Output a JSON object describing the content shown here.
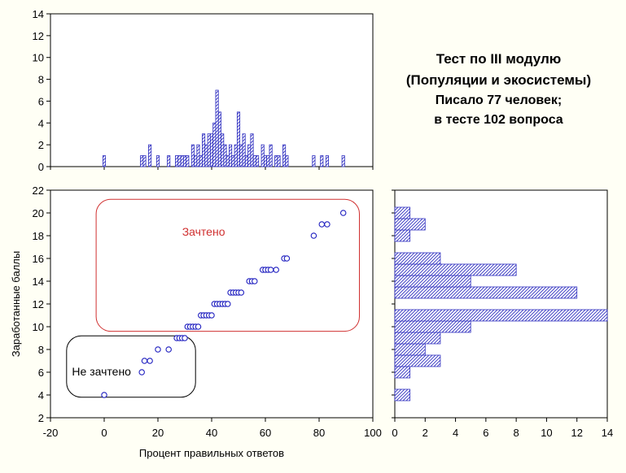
{
  "colors": {
    "bar": "#3030c0",
    "marker": "#2020c0",
    "pass_box": "#d03030",
    "fail_box": "#000000",
    "background": "#fffff5"
  },
  "info": {
    "line1": "Тест по III модулю",
    "line2": "(Популяции и экосистемы)",
    "line3": "Писало 77 человек;",
    "line4": "в тесте 102 вопроса"
  },
  "chart_data": [
    {
      "id": "scatter",
      "type": "scatter",
      "xlabel": "Процент правильных ответов",
      "ylabel": "Заработанные баллы",
      "xlim": [
        -20,
        100
      ],
      "ylim": [
        2,
        22
      ],
      "xticks": [
        -20,
        0,
        20,
        40,
        60,
        80,
        100
      ],
      "yticks": [
        2,
        4,
        6,
        8,
        10,
        12,
        14,
        16,
        18,
        20,
        22
      ],
      "points": [
        [
          0,
          4
        ],
        [
          14,
          6
        ],
        [
          15,
          7
        ],
        [
          17,
          7
        ],
        [
          20,
          8
        ],
        [
          24,
          8
        ],
        [
          27,
          9
        ],
        [
          28,
          9
        ],
        [
          29,
          9
        ],
        [
          30,
          9
        ],
        [
          31,
          10
        ],
        [
          32,
          10
        ],
        [
          33,
          10
        ],
        [
          34,
          10
        ],
        [
          35,
          10
        ],
        [
          36,
          11
        ],
        [
          37,
          11
        ],
        [
          38,
          11
        ],
        [
          39,
          11
        ],
        [
          40,
          11
        ],
        [
          41,
          12
        ],
        [
          42,
          12
        ],
        [
          43,
          12
        ],
        [
          44,
          12
        ],
        [
          45,
          12
        ],
        [
          46,
          12
        ],
        [
          47,
          13
        ],
        [
          48,
          13
        ],
        [
          49,
          13
        ],
        [
          50,
          13
        ],
        [
          51,
          13
        ],
        [
          54,
          14
        ],
        [
          55,
          14
        ],
        [
          56,
          14
        ],
        [
          59,
          15
        ],
        [
          60,
          15
        ],
        [
          61,
          15
        ],
        [
          62,
          15
        ],
        [
          64,
          15
        ],
        [
          67,
          16
        ],
        [
          68,
          16
        ],
        [
          78,
          18
        ],
        [
          81,
          19
        ],
        [
          83,
          19
        ],
        [
          89,
          20
        ]
      ],
      "annotations": [
        {
          "label": "Зачтено",
          "color": "#d03030",
          "x": [
            -3,
            95
          ],
          "y": [
            9.6,
            21.2
          ],
          "text_at": [
            37,
            18
          ]
        },
        {
          "label": "Не зачтено",
          "color": "#000000",
          "x": [
            -14,
            34
          ],
          "y": [
            3.8,
            9.2
          ],
          "text_at": [
            -1,
            5.7
          ]
        }
      ]
    },
    {
      "id": "hist_top",
      "type": "bar",
      "orientation": "vertical",
      "bin_width": 1,
      "xlim": [
        -20,
        100
      ],
      "ylim": [
        0,
        14
      ],
      "yticks": [
        0,
        2,
        4,
        6,
        8,
        10,
        12,
        14
      ],
      "bins": [
        [
          0,
          1
        ],
        [
          14,
          1
        ],
        [
          15,
          1
        ],
        [
          17,
          2
        ],
        [
          20,
          1
        ],
        [
          24,
          1
        ],
        [
          27,
          1
        ],
        [
          28,
          1
        ],
        [
          29,
          1
        ],
        [
          30,
          1
        ],
        [
          31,
          1
        ],
        [
          33,
          2
        ],
        [
          34,
          1
        ],
        [
          35,
          2
        ],
        [
          36,
          1
        ],
        [
          37,
          3
        ],
        [
          38,
          2
        ],
        [
          39,
          3
        ],
        [
          40,
          3
        ],
        [
          41,
          4
        ],
        [
          42,
          7
        ],
        [
          43,
          5
        ],
        [
          44,
          3
        ],
        [
          45,
          2
        ],
        [
          46,
          1
        ],
        [
          47,
          2
        ],
        [
          48,
          1
        ],
        [
          49,
          2
        ],
        [
          50,
          5
        ],
        [
          51,
          2
        ],
        [
          52,
          3
        ],
        [
          53,
          1
        ],
        [
          54,
          2
        ],
        [
          55,
          3
        ],
        [
          56,
          1
        ],
        [
          57,
          1
        ],
        [
          59,
          2
        ],
        [
          60,
          1
        ],
        [
          61,
          1
        ],
        [
          62,
          2
        ],
        [
          64,
          1
        ],
        [
          65,
          1
        ],
        [
          67,
          2
        ],
        [
          68,
          1
        ],
        [
          78,
          1
        ],
        [
          81,
          1
        ],
        [
          83,
          1
        ],
        [
          89,
          1
        ]
      ]
    },
    {
      "id": "hist_right",
      "type": "bar",
      "orientation": "horizontal",
      "xlim": [
        0,
        14
      ],
      "ylim": [
        2,
        22
      ],
      "xticks": [
        0,
        2,
        4,
        6,
        8,
        10,
        12,
        14
      ],
      "bars": [
        {
          "y": 4,
          "value": 1
        },
        {
          "y": 6,
          "value": 1
        },
        {
          "y": 7,
          "value": 3
        },
        {
          "y": 8,
          "value": 2
        },
        {
          "y": 9,
          "value": 3
        },
        {
          "y": 10,
          "value": 5
        },
        {
          "y": 11,
          "value": 14
        },
        {
          "y": 13,
          "value": 12
        },
        {
          "y": 14,
          "value": 5
        },
        {
          "y": 15,
          "value": 8
        },
        {
          "y": 16,
          "value": 3
        },
        {
          "y": 18,
          "value": 1
        },
        {
          "y": 19,
          "value": 2
        },
        {
          "y": 20,
          "value": 1
        }
      ]
    }
  ]
}
